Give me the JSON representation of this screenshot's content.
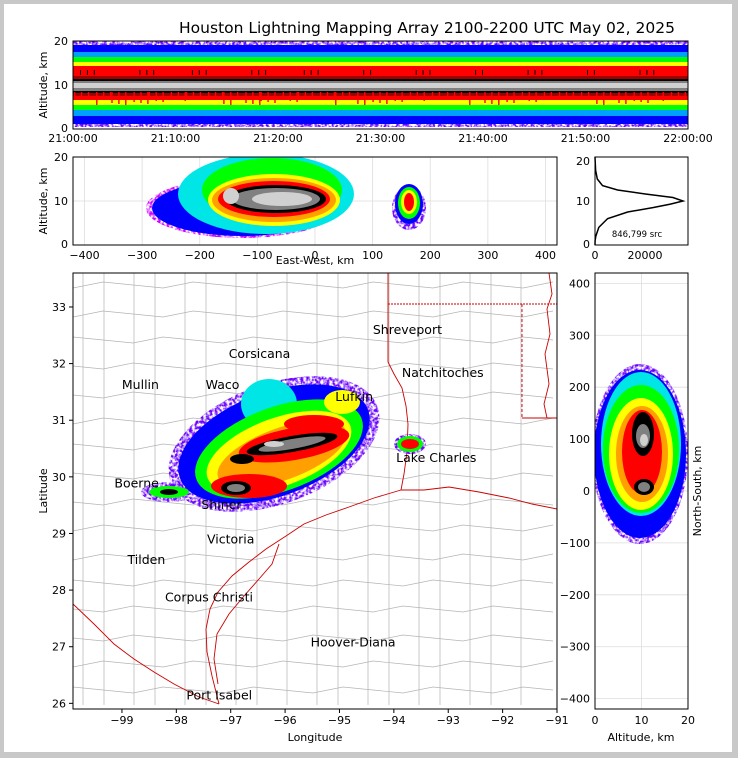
{
  "title": "Houston Lightning Mapping Array 2100-2200 UTC May 02, 2025",
  "colors": {
    "scale": [
      "#ffffff",
      "#cc00ff",
      "#6a00ff",
      "#0000ff",
      "#00a0ff",
      "#00e6e6",
      "#00c000",
      "#00ff00",
      "#ffff00",
      "#ffa000",
      "#ff0000",
      "#a00000",
      "#000000",
      "#808080",
      "#d0d0d0",
      "#ffffff"
    ],
    "state_border": "#cc0000",
    "county_border": "#b4b4b4",
    "grid": "#dddddd",
    "mullin": "#ff8c3c",
    "hoover": "#1f1fff"
  },
  "chart_data": [
    {
      "type": "heatmap",
      "panel": "time-altitude",
      "ylabel": "Altitude, km",
      "ylim": [
        0,
        20
      ],
      "yticks": [
        "0",
        "10",
        "20"
      ],
      "xticks": [
        "21:00:00",
        "21:10:00",
        "21:20:00",
        "21:30:00",
        "21:40:00",
        "21:50:00",
        "22:00:00"
      ],
      "core_altitude_km": [
        8,
        11
      ],
      "sources_extend_to_km": [
        0,
        20
      ]
    },
    {
      "type": "heatmap",
      "panel": "east-west-altitude",
      "xlabel": "East-West, km",
      "ylabel": "Altitude, km",
      "xlim": [
        -420,
        420
      ],
      "ylim": [
        0,
        20
      ],
      "xticks": [
        "−400",
        "−300",
        "−200",
        "−100",
        "0",
        "100",
        "200",
        "300",
        "400"
      ],
      "yticks": [
        "0",
        "10",
        "20"
      ],
      "core_altitude_km": 10,
      "main_cell_ew_km": [
        -230,
        60
      ],
      "east_cell_ew_km": [
        150,
        190
      ]
    },
    {
      "type": "line",
      "panel": "altitude-histogram",
      "annotation": "846,799 src",
      "xticks": [
        "0",
        "20000"
      ],
      "yticks": [
        "0",
        "10",
        "20"
      ],
      "xlim": [
        0,
        37000
      ],
      "ylim": [
        0,
        20
      ],
      "x": [
        0,
        50,
        300,
        1500,
        5000,
        13000,
        23000,
        30000,
        35000,
        31000,
        20000,
        9000,
        3000,
        900,
        250,
        60,
        0
      ],
      "y": [
        0,
        1,
        2,
        4,
        6,
        7.5,
        8.5,
        9.3,
        10,
        10.8,
        11.6,
        12.5,
        13.5,
        15,
        17,
        19,
        20
      ]
    },
    {
      "type": "heatmap",
      "panel": "plan-view",
      "xlabel": "Longitude",
      "ylabel": "Latitude",
      "xlim": [
        -99.9,
        -91
      ],
      "ylim": [
        25.9,
        33.6
      ],
      "xticks": [
        "−99",
        "−98",
        "−97",
        "−96",
        "−95",
        "−94",
        "−93",
        "−92",
        "−91"
      ],
      "yticks": [
        "26",
        "27",
        "28",
        "29",
        "30",
        "31",
        "32",
        "33"
      ],
      "cells": [
        {
          "lon": -96.2,
          "lat": 30.6
        },
        {
          "lon": -95.6,
          "lat": 30.4
        },
        {
          "lon": -95.5,
          "lat": 31.2
        },
        {
          "lon": -97.2,
          "lat": 29.8
        },
        {
          "lon": -93.8,
          "lat": 30.6
        }
      ]
    },
    {
      "type": "heatmap",
      "panel": "altitude-north-south",
      "xlabel": "Altitude, km",
      "ylabel": "North-South, km",
      "xlim": [
        0,
        20
      ],
      "ylim": [
        -420,
        420
      ],
      "xticks": [
        "0",
        "10",
        "20"
      ],
      "yticks": [
        "−400",
        "−300",
        "−200",
        "−100",
        "0",
        "100",
        "200",
        "300",
        "400"
      ],
      "core_ns_km": [
        0,
        20,
        90,
        130
      ]
    }
  ],
  "cities": [
    {
      "name": "Shreveport",
      "lon": -93.75,
      "lat": 32.52
    },
    {
      "name": "Corsicana",
      "lon": -96.47,
      "lat": 32.1
    },
    {
      "name": "Natchitoches",
      "lon": -93.1,
      "lat": 31.76
    },
    {
      "name": "Mullin",
      "lon": -98.66,
      "lat": 31.55
    },
    {
      "name": "Waco",
      "lon": -97.15,
      "lat": 31.55
    },
    {
      "name": "Lufkin",
      "lon": -94.73,
      "lat": 31.34
    },
    {
      "name": "Lake Charles",
      "lon": -93.22,
      "lat": 30.26
    },
    {
      "name": "Boerne",
      "lon": -98.73,
      "lat": 29.81
    },
    {
      "name": "Shiner",
      "lon": -97.17,
      "lat": 29.43
    },
    {
      "name": "Victoria",
      "lon": -97.0,
      "lat": 28.82
    },
    {
      "name": "Tilden",
      "lon": -98.55,
      "lat": 28.46
    },
    {
      "name": "Corpus Christi",
      "lon": -97.4,
      "lat": 27.8
    },
    {
      "name": "Hoover-Diana",
      "lon": -94.75,
      "lat": 27.0
    },
    {
      "name": "Port Isabel",
      "lon": -97.21,
      "lat": 26.07
    }
  ]
}
